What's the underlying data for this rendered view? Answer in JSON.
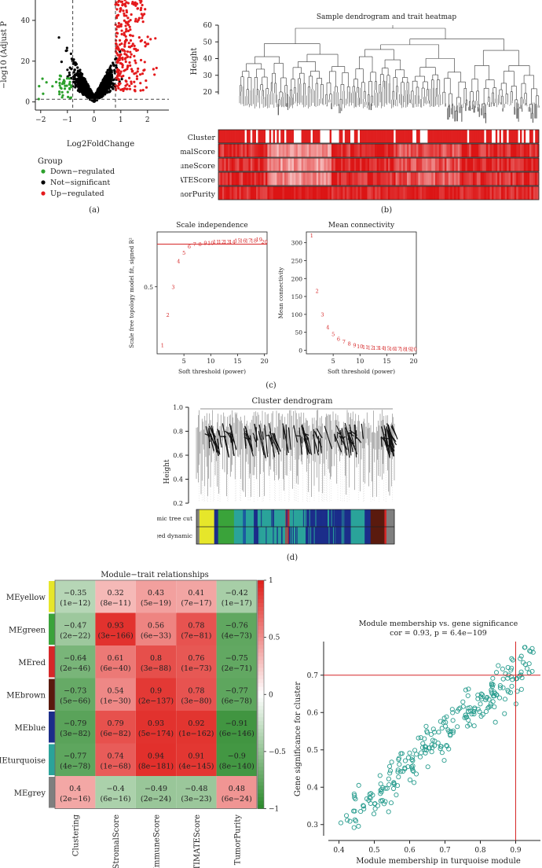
{
  "panels": {
    "a": {
      "label": "(a)",
      "y_axis_label": "−log10 (Adjust P",
      "x_axis_label": "Log2FoldChange",
      "legend_title": "Group",
      "legend_items": [
        "Down−regulated",
        "Not−significant",
        "Up−regulated"
      ],
      "colors": {
        "down": "#2ca02c",
        "not": "#000000",
        "up": "#e41a1c"
      }
    },
    "b": {
      "label": "(b)",
      "title": "Sample dendrogram and trait heatmap",
      "y_axis_label": "Height",
      "traits": [
        "Cluster",
        "StromalScore",
        "ImmuneScore",
        "ESTIMATEScore",
        "TumorPurity"
      ]
    },
    "c": {
      "label": "(c)",
      "left_title": "Scale independence",
      "left_ylabel": "Scale free topology model fit, signed R²",
      "left_xlabel": "Soft threshold (power)",
      "right_title": "Mean connectivity",
      "right_ylabel": "Mean connectivity",
      "right_xlabel": "Soft threshold (power)"
    },
    "d": {
      "label": "(d)",
      "title": "Cluster dendrogram",
      "y_axis_label": "Height",
      "row_labels": [
        "Dynamic tree cut",
        "Merged dynamic"
      ]
    },
    "e": {
      "title": "Module−trait relationships",
      "modules": [
        "MEyellow",
        "MEgreen",
        "MEred",
        "MEbrown",
        "MEblue",
        "MEturquoise",
        "MEgrey"
      ],
      "module_colors": [
        "#e6e62a",
        "#3aa33a",
        "#d62728",
        "#5a1a0e",
        "#1b2d8a",
        "#2aa39a",
        "#7f7f7f"
      ],
      "traits": [
        "Clustering",
        "StromalScore",
        "ImmuneScore",
        "ESTIMATEScore",
        "TumorPurity"
      ],
      "cells": [
        [
          [
            "−0.35",
            "(1e−12)"
          ],
          [
            "0.32",
            "(8e−11)"
          ],
          [
            "0.43",
            "(5e−19)"
          ],
          [
            "0.41",
            "(7e−17)"
          ],
          [
            "−0.42",
            "(1e−17)"
          ]
        ],
        [
          [
            "−0.47",
            "(2e−22)"
          ],
          [
            "0.93",
            "(3e−166)"
          ],
          [
            "0.56",
            "(6e−33)"
          ],
          [
            "0.78",
            "(7e−81)"
          ],
          [
            "−0.76",
            "(4e−73)"
          ]
        ],
        [
          [
            "−0.64",
            "(2e−46)"
          ],
          [
            "0.61",
            "(6e−40)"
          ],
          [
            "0.8",
            "(3e−88)"
          ],
          [
            "0.76",
            "(1e−73)"
          ],
          [
            "−0.75",
            "(2e−71)"
          ]
        ],
        [
          [
            "−0.73",
            "(5e−66)"
          ],
          [
            "0.54",
            "(1e−30)"
          ],
          [
            "0.9",
            "(2e−137)"
          ],
          [
            "0.78",
            "(3e−80)"
          ],
          [
            "−0.77",
            "(6e−78)"
          ]
        ],
        [
          [
            "−0.79",
            "(3e−82)"
          ],
          [
            "0.79",
            "(6e−82)"
          ],
          [
            "0.93",
            "(5e−174)"
          ],
          [
            "0.92",
            "(1e−162)"
          ],
          [
            "−0.91",
            "(6e−146)"
          ]
        ],
        [
          [
            "−0.77",
            "(4e−78)"
          ],
          [
            "0.74",
            "(1e−68)"
          ],
          [
            "0.94",
            "(8e−181)"
          ],
          [
            "0.91",
            "(4e−145)"
          ],
          [
            "−0.9",
            "(8e−140)"
          ]
        ],
        [
          [
            "0.4",
            "(2e−16)"
          ],
          [
            "−0.4",
            "(6e−16)"
          ],
          [
            "−0.49",
            "(2e−24)"
          ],
          [
            "−0.48",
            "(3e−23)"
          ],
          [
            "0.48",
            "(6e−24)"
          ]
        ]
      ],
      "values": [
        [
          -0.35,
          0.32,
          0.43,
          0.41,
          -0.42
        ],
        [
          -0.47,
          0.93,
          0.56,
          0.78,
          -0.76
        ],
        [
          -0.64,
          0.61,
          0.8,
          0.76,
          -0.75
        ],
        [
          -0.73,
          0.54,
          0.9,
          0.78,
          -0.77
        ],
        [
          -0.79,
          0.79,
          0.93,
          0.92,
          -0.91
        ],
        [
          -0.77,
          0.74,
          0.94,
          0.91,
          -0.9
        ],
        [
          0.4,
          -0.4,
          -0.49,
          -0.48,
          0.48
        ]
      ],
      "colorbar_ticks": [
        "1",
        "0.5",
        "0",
        "−0.5",
        "−1"
      ]
    },
    "f": {
      "title": "Module membership vs. gene significance",
      "subtitle": "cor = 0.93, p = 6.4e−109",
      "xlabel": "Module membership in turquoise module",
      "ylabel": "Gene significance for cluster",
      "point_color": "#2a9d8f"
    }
  },
  "chart_data": [
    {
      "type": "scatter",
      "title": "",
      "xlabel": "Log2FoldChange",
      "ylabel": "−log10 (Adjust P",
      "xlim": [
        -2.2,
        2.8
      ],
      "ylim": [
        -4,
        50
      ],
      "x_ticks": [
        -2,
        -1,
        0,
        1,
        2
      ],
      "y_ticks": [
        0,
        20,
        40
      ],
      "thresholds": {
        "x": [
          -0.8,
          0.8
        ],
        "y": 1.3
      },
      "series": [
        "Down−regulated",
        "Not−significant",
        "Up−regulated"
      ]
    },
    {
      "type": "scatter",
      "title": "Scale independence",
      "xlabel": "Soft threshold (power)",
      "ylabel": "Scale free topology model fit, signed R²",
      "xlim": [
        0,
        20.5
      ],
      "ylim": [
        -0.05,
        0.95
      ],
      "x_ticks": [
        5,
        10,
        15,
        20
      ],
      "y_ticks": [
        0.5
      ],
      "cutoff": 0.85,
      "x": [
        1,
        2,
        3,
        4,
        5,
        6,
        7,
        8,
        9,
        10,
        11,
        12,
        13,
        14,
        15,
        16,
        17,
        18,
        19,
        20
      ],
      "y": [
        0.02,
        0.27,
        0.5,
        0.71,
        0.78,
        0.83,
        0.85,
        0.85,
        0.86,
        0.86,
        0.87,
        0.87,
        0.87,
        0.87,
        0.88,
        0.88,
        0.88,
        0.88,
        0.89,
        0.87
      ]
    },
    {
      "type": "scatter",
      "title": "Mean connectivity",
      "xlabel": "Soft threshold (power)",
      "ylabel": "Mean connectivity",
      "xlim": [
        0,
        20.5
      ],
      "ylim": [
        -10,
        330
      ],
      "x_ticks": [
        5,
        10,
        15,
        20
      ],
      "y_ticks": [
        0,
        50,
        100,
        150,
        200,
        250,
        300
      ],
      "x": [
        1,
        2,
        3,
        4,
        5,
        6,
        7,
        8,
        9,
        10,
        11,
        12,
        13,
        14,
        15,
        16,
        17,
        18,
        19,
        20
      ],
      "y": [
        320,
        165,
        100,
        65,
        45,
        32,
        24,
        18,
        14,
        11,
        9,
        8,
        7,
        6,
        5,
        4,
        4,
        3,
        3,
        3
      ]
    },
    {
      "type": "heatmap",
      "title": "Module−trait relationships",
      "rows": [
        "MEyellow",
        "MEgreen",
        "MEred",
        "MEbrown",
        "MEblue",
        "MEturquoise",
        "MEgrey"
      ],
      "columns": [
        "Clustering",
        "StromalScore",
        "ImmuneScore",
        "ESTIMATEScore",
        "TumorPurity"
      ],
      "values": [
        [
          -0.35,
          0.32,
          0.43,
          0.41,
          -0.42
        ],
        [
          -0.47,
          0.93,
          0.56,
          0.78,
          -0.76
        ],
        [
          -0.64,
          0.61,
          0.8,
          0.76,
          -0.75
        ],
        [
          -0.73,
          0.54,
          0.9,
          0.78,
          -0.77
        ],
        [
          -0.79,
          0.79,
          0.93,
          0.92,
          -0.91
        ],
        [
          -0.77,
          0.74,
          0.94,
          0.91,
          -0.9
        ],
        [
          0.4,
          -0.4,
          -0.49,
          -0.48,
          0.48
        ]
      ],
      "colorbar": {
        "min": -1,
        "max": 1
      }
    },
    {
      "type": "scatter",
      "title": "Module membership vs. gene significance",
      "subtitle": "cor = 0.93, p = 6.4e−109",
      "xlabel": "Module membership in turquoise module",
      "ylabel": "Gene significance for cluster",
      "xlim": [
        0.37,
        0.97
      ],
      "ylim": [
        0.27,
        0.79
      ],
      "x_ticks": [
        0.4,
        0.5,
        0.6,
        0.7,
        0.8,
        0.9
      ],
      "y_ticks": [
        0.3,
        0.4,
        0.5,
        0.6,
        0.7
      ],
      "reference_lines": {
        "x": 0.9,
        "y": 0.7
      }
    }
  ]
}
